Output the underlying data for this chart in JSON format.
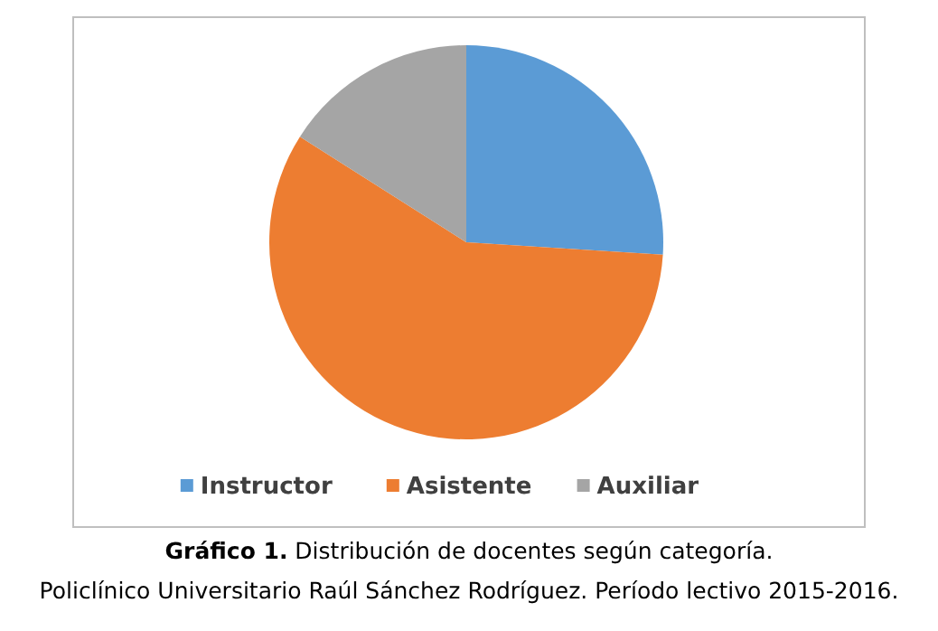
{
  "chart_data": {
    "type": "pie",
    "categories": [
      "Instructor",
      "Asistente",
      "Auxiliar"
    ],
    "values": [
      26,
      58,
      16
    ],
    "colors": [
      "#5b9bd5",
      "#ed7d31",
      "#a5a5a5"
    ],
    "legend": "bottom",
    "annotations": [
      "Gráfico 1. Distribución de docentes según categoría.",
      "Policlínico Universitario Raúl Sánchez Rodríguez. Período lectivo 2015-2016."
    ]
  }
}
